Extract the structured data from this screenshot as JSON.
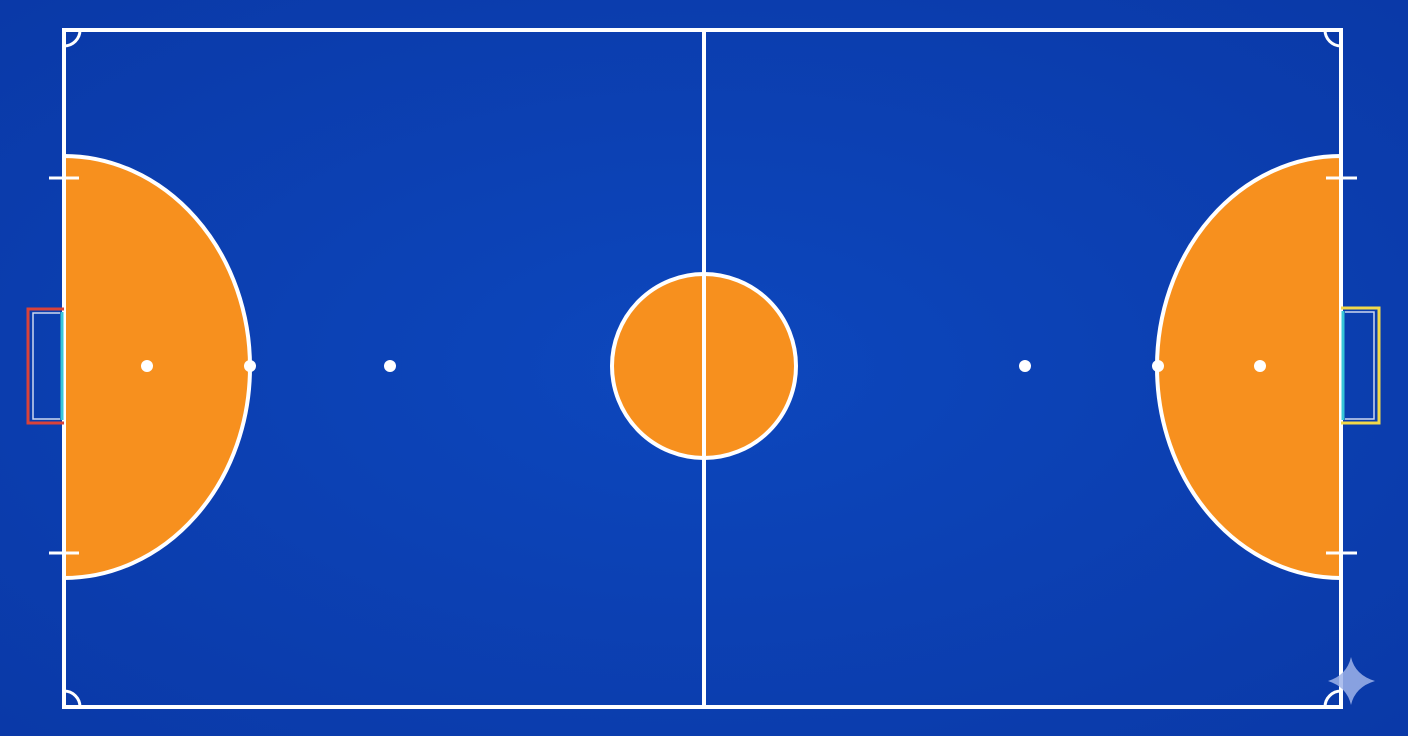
{
  "court": {
    "colors": {
      "background": "#0b3fb3",
      "background_edge": "#0a36a0",
      "zone": "#f7901e",
      "line": "#ffffff",
      "goal_left_frame": "#d9423a",
      "goal_left_inner": "#38c7d8",
      "goal_right_frame": "#f2d94a",
      "goal_right_inner": "#38c7d8",
      "sparkle": "#9fb4ea"
    },
    "icons": {
      "watermark": "sparkle-icon"
    }
  }
}
